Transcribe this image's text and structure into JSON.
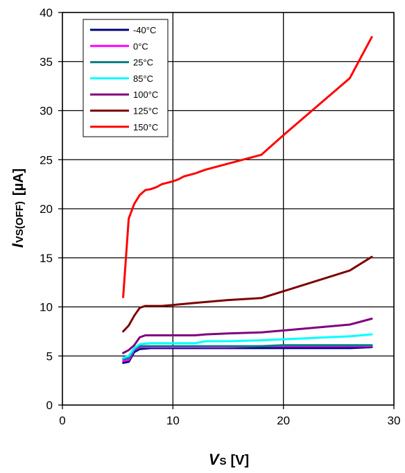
{
  "chart_data": {
    "type": "line",
    "title": "",
    "xlabel": {
      "main": "V",
      "sub": "S",
      "unit": "[V]"
    },
    "ylabel": {
      "main": "I",
      "sub": "VS(OFF)",
      "unit": "[µA]"
    },
    "xlim": [
      0,
      30
    ],
    "ylim": [
      0,
      40
    ],
    "x_ticks": [
      0,
      10,
      20,
      30
    ],
    "y_ticks": [
      0,
      5,
      10,
      15,
      20,
      25,
      30,
      35,
      40
    ],
    "grid": true,
    "legend_position": "top-left",
    "series": [
      {
        "name": "-40°C",
        "color": "#00007f",
        "x": [
          5.5,
          6,
          6.5,
          7,
          8,
          9,
          10,
          11,
          12,
          13,
          15,
          18,
          20,
          26,
          28
        ],
        "y": [
          4.3,
          4.4,
          5.4,
          5.7,
          5.8,
          5.8,
          5.8,
          5.8,
          5.8,
          5.8,
          5.8,
          5.8,
          5.8,
          5.8,
          5.9
        ]
      },
      {
        "name": "0°C",
        "color": "#ff00ff",
        "x": [
          5.5,
          6,
          6.5,
          7,
          8,
          9,
          10,
          11,
          12,
          13,
          15,
          18,
          20,
          26,
          28
        ],
        "y": [
          4.5,
          4.6,
          5.6,
          5.9,
          5.9,
          5.9,
          5.9,
          5.9,
          5.9,
          5.9,
          5.9,
          6.0,
          6.0,
          6.0,
          6.0
        ]
      },
      {
        "name": "25°C",
        "color": "#007f7f",
        "x": [
          5.5,
          6,
          6.5,
          7,
          8,
          9,
          10,
          11,
          12,
          13,
          15,
          18,
          20,
          26,
          28
        ],
        "y": [
          4.7,
          4.8,
          5.7,
          6.0,
          6.0,
          6.0,
          6.0,
          6.0,
          6.0,
          6.0,
          6.0,
          6.0,
          6.1,
          6.1,
          6.1
        ]
      },
      {
        "name": "85°C",
        "color": "#00ffff",
        "x": [
          5.5,
          6,
          6.5,
          7,
          8,
          9,
          10,
          11,
          12,
          13,
          15,
          18,
          20,
          26,
          28
        ],
        "y": [
          4.8,
          5.0,
          5.8,
          6.2,
          6.3,
          6.3,
          6.3,
          6.3,
          6.3,
          6.5,
          6.5,
          6.6,
          6.7,
          7.0,
          7.2
        ]
      },
      {
        "name": "100°C",
        "color": "#7f007f",
        "x": [
          5.5,
          6,
          6.5,
          7,
          7.5,
          8,
          9,
          10,
          11,
          12,
          13,
          15,
          18,
          20,
          26,
          28
        ],
        "y": [
          5.3,
          5.6,
          6.1,
          6.9,
          7.1,
          7.1,
          7.1,
          7.1,
          7.1,
          7.1,
          7.2,
          7.3,
          7.4,
          7.6,
          8.2,
          8.8
        ]
      },
      {
        "name": "125°C",
        "color": "#7f0000",
        "x": [
          5.5,
          6,
          6.5,
          7,
          7.5,
          8,
          9,
          10,
          11,
          12,
          13,
          15,
          18,
          20,
          26,
          28
        ],
        "y": [
          7.5,
          8.1,
          9.1,
          9.9,
          10.1,
          10.1,
          10.1,
          10.2,
          10.3,
          10.4,
          10.5,
          10.7,
          10.9,
          11.6,
          13.7,
          15.1
        ]
      },
      {
        "name": "150°C",
        "color": "#ff0000",
        "x": [
          5.5,
          6,
          6.5,
          7,
          7.5,
          8,
          8.5,
          9,
          10,
          10.5,
          11,
          12,
          12.5,
          13,
          14,
          16,
          18,
          20,
          26,
          28
        ],
        "y": [
          11.0,
          19.0,
          20.5,
          21.4,
          21.9,
          22.0,
          22.2,
          22.5,
          22.8,
          23.0,
          23.3,
          23.6,
          23.8,
          24.0,
          24.3,
          24.9,
          25.5,
          27.5,
          33.3,
          37.5
        ]
      }
    ]
  }
}
